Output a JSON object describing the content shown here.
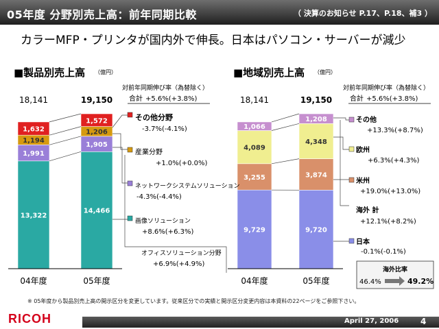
{
  "header": {
    "title": "05年度 分野別売上高：前年同期比較",
    "ref": "（ 決算のお知らせ P.17、P.18、補3 ）"
  },
  "subtitle": "カラーMFP・プリンタが国内外で伸長。日本はパソコン・サーバーが減少",
  "footnote": "※ 05年度から製品別売上高の開示区分を変更しています。従来区分での実績と開示区分変更内容は本資料の22ページをご参照下さい。",
  "footer": {
    "logo": "RICOH",
    "date": "April 27, 2006",
    "page": "4"
  },
  "colors": {
    "office": "#2aa9a3",
    "imaging": "#9a7fd8",
    "industrial": "#d69a10",
    "other": "#e02020",
    "japan": "#8a8ee8",
    "americas": "#d9906a",
    "europe": "#f0ee90",
    "other_region": "#c68fcf"
  },
  "chart_data": [
    {
      "type": "bar",
      "title": "■製品別売上高",
      "unit": "（億円）",
      "categories": [
        "04年度",
        "05年度"
      ],
      "totals": [
        "18,141",
        "19,150"
      ],
      "growth_header": "対前年同期伸び率（為替除く）",
      "total_label": "合計",
      "total_growth": "+5.6%(+3.8%)",
      "series": [
        {
          "name": "オフィスソリューション分野",
          "values": [
            13322,
            14466
          ],
          "labels": [
            "13,322",
            "14,466"
          ],
          "color": "#2aa9a3",
          "growth": "+6.9%(+4.9%)"
        },
        {
          "name": "ネットワークシステムソリューション",
          "values": [
            1991,
            1905
          ],
          "labels": [
            "1,991",
            "1,905"
          ],
          "color": "#9a7fd8",
          "growth": "-4.3%(-4.4%)"
        },
        {
          "name": "産業分野",
          "values": [
            1194,
            1206
          ],
          "labels": [
            "1,194",
            "1,206"
          ],
          "color": "#d69a10",
          "growth": "+1.0%(+0.0%)"
        },
        {
          "name": "その他分野",
          "values": [
            1632,
            1572
          ],
          "labels": [
            "1,632",
            "1,572"
          ],
          "color": "#e02020",
          "growth": "-3.7%(-4.1%)"
        }
      ],
      "sub_series": {
        "name": "画像ソリューション",
        "growth": "+8.6%(+6.3%)"
      }
    },
    {
      "type": "bar",
      "title": "■地域別売上高",
      "unit": "（億円）",
      "categories": [
        "04年度",
        "05年度"
      ],
      "totals": [
        "18,141",
        "19,150"
      ],
      "growth_header": "対前年同期伸び率（為替除く）",
      "total_label": "合計",
      "total_growth": "+5.6%(+3.8%)",
      "series": [
        {
          "name": "日本",
          "values": [
            9729,
            9720
          ],
          "labels": [
            "9,729",
            "9,720"
          ],
          "color": "#8a8ee8",
          "growth": "-0.1%(-0.1%)"
        },
        {
          "name": "米州",
          "values": [
            3255,
            3874
          ],
          "labels": [
            "3,255",
            "3,874"
          ],
          "color": "#d9906a",
          "growth": "+19.0%(+13.0%)"
        },
        {
          "name": "欧州",
          "values": [
            4089,
            4348
          ],
          "labels": [
            "4,089",
            "4,348"
          ],
          "color": "#f0ee90",
          "growth": "+6.3%(+4.3%)"
        },
        {
          "name": "その他",
          "values": [
            1066,
            1208
          ],
          "labels": [
            "1,066",
            "1,208"
          ],
          "color": "#c68fcf",
          "growth": "+13.3%(+8.7%)"
        }
      ],
      "overseas_total": {
        "name": "海外 計",
        "growth": "+12.1%(+8.2%)"
      },
      "overseas_ratio": {
        "title": "海外比率",
        "from": "46.4%",
        "to": "49.2%"
      }
    }
  ]
}
